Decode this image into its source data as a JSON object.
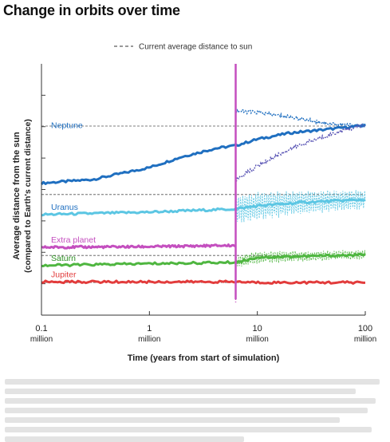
{
  "title": "Change in orbits over time",
  "chart_data": {
    "type": "line",
    "title": "Change in orbits over time",
    "xlabel": "Time (years from start of simulation)",
    "ylabel": "Average distance from the sun",
    "ylabel2": "(compared to Earth's current distance)",
    "x_scale": "log",
    "xlim": [
      0.1,
      100
    ],
    "x_unit": "million years",
    "x_ticks": [
      {
        "value": 0.1,
        "label": "0.1",
        "sub": "million"
      },
      {
        "value": 1,
        "label": "1",
        "sub": "million"
      },
      {
        "value": 10,
        "label": "10",
        "sub": "million"
      },
      {
        "value": 100,
        "label": "100",
        "sub": "million"
      }
    ],
    "ylim": [
      0,
      40
    ],
    "y_tick_values": [
      5,
      10,
      15,
      20,
      25,
      30,
      35
    ],
    "legend": {
      "label": "Current average distance to sun",
      "style": "dashed",
      "position": "top"
    },
    "ejection_time": 6.3,
    "ejection_color": "#c44fbf",
    "reference_lines": [
      {
        "name": "Neptune",
        "value": 30.1
      },
      {
        "name": "Uranus",
        "value": 19.2
      },
      {
        "name": "Saturn",
        "value": 9.5
      },
      {
        "name": "Jupiter",
        "value": 5.2
      }
    ],
    "series": [
      {
        "name": "Neptune",
        "color": "#1f6fc0",
        "label_color": "#1f6fc0",
        "x": [
          0.1,
          0.3,
          1,
          2,
          4,
          6.3,
          10,
          20,
          40,
          100
        ],
        "y": [
          21,
          21.6,
          23.5,
          25.2,
          26.5,
          27,
          28,
          29,
          29.5,
          30.2
        ]
      },
      {
        "name": "Uranus",
        "color": "#5cc6e3",
        "label_color": "#1f6fc0",
        "x": [
          0.1,
          1,
          6.3,
          10,
          30,
          100
        ],
        "y": [
          16,
          16.4,
          16.9,
          17.4,
          18,
          18.4
        ]
      },
      {
        "name": "Extra planet",
        "color": "#c44fbf",
        "label_color": "#c44fbf",
        "x": [
          0.1,
          1,
          6.3
        ],
        "y": [
          10.8,
          10.9,
          11.1
        ]
      },
      {
        "name": "Saturn",
        "color": "#4fb640",
        "label_color": "#2e9124",
        "x": [
          0.1,
          1,
          6.3,
          10,
          100
        ],
        "y": [
          7.9,
          8.2,
          8.4,
          9.2,
          9.6
        ]
      },
      {
        "name": "Jupiter",
        "color": "#e23c3c",
        "label_color": "#e23c3c",
        "x": [
          0.1,
          1,
          6.3,
          10,
          100
        ],
        "y": [
          5.3,
          5.3,
          5.3,
          5.2,
          5.2
        ]
      }
    ]
  }
}
